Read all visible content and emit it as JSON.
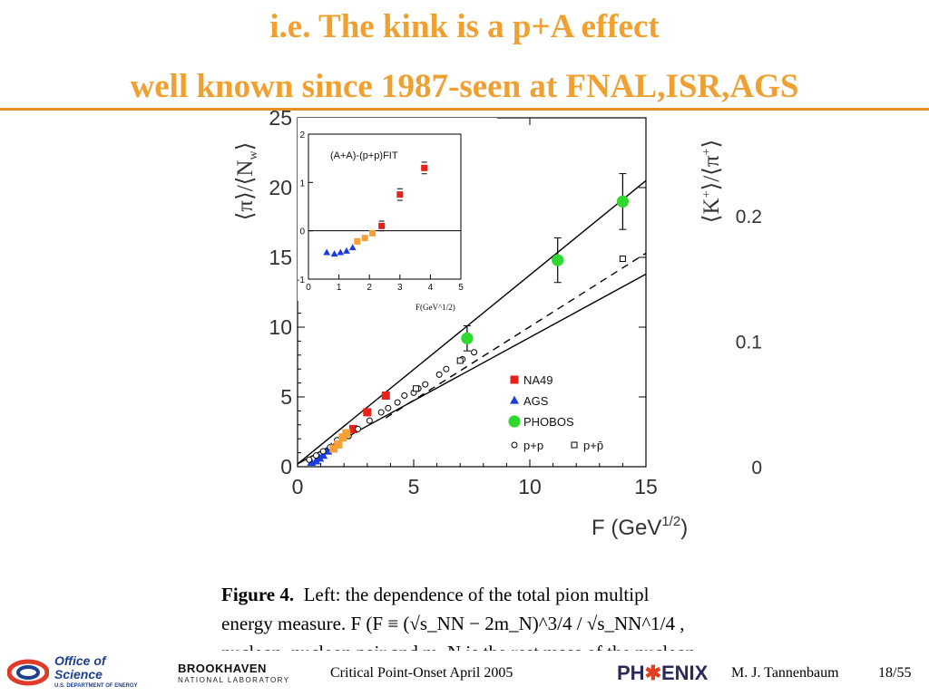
{
  "slide": {
    "title_line1": "i.e. The kink is a p+A effect",
    "title_line2": "well known since 1987-seen at FNAL,ISR,AGS",
    "title_color": "#F0A030"
  },
  "caption": {
    "label": "Figure 4.",
    "line1": "Left: the dependence of the total pion multipl",
    "line2": "energy measure.  F (F ≡ (√s_NN − 2m_N)^3/4 / √s_NN^1/4 ,",
    "line3": "nucleon–nucleon pair and m_N is the rest mass of the nucleon"
  },
  "footer": {
    "doe_line1": "Office of",
    "doe_line2": "Science",
    "doe_line3": "U.S. DEPARTMENT OF ENERGY",
    "bnl_name": "BROOKHAVEN",
    "bnl_sub": "NATIONAL LABORATORY",
    "center_text": "Critical Point-Onset April 2005",
    "phenix_a": "PH",
    "phenix_b": "✱",
    "phenix_c": "ENIX",
    "author": "M. J. Tannenbaum",
    "page": "18/55"
  },
  "chart_data": [
    {
      "type": "scatter",
      "xlabel": "F (GeV^1/2)",
      "ylabel": "⟨π⟩/⟨N_w⟩",
      "y2label": "⟨K+⟩/⟨π+⟩",
      "xlim": [
        0,
        15
      ],
      "ylim": [
        0,
        25
      ],
      "x_ticks": [
        0,
        5,
        10,
        15
      ],
      "y_ticks": [
        0,
        5,
        10,
        15,
        20,
        25
      ],
      "y2_ticks": [
        {
          "label": "0",
          "y_equiv": 0
        },
        {
          "label": "0.1",
          "y_equiv": 9
        },
        {
          "label": "0.2",
          "y_equiv": 18
        }
      ],
      "series": [
        {
          "name": "NA49",
          "marker": "square",
          "color": "#E8201A",
          "points": [
            [
              2.4,
              2.7
            ],
            [
              3.0,
              3.9
            ],
            [
              3.8,
              5.1
            ]
          ]
        },
        {
          "name": "AGS",
          "marker": "triangle",
          "color": "#1A3CE0",
          "points": [
            [
              0.6,
              0.3
            ],
            [
              0.8,
              0.4
            ],
            [
              0.95,
              0.6
            ],
            [
              1.1,
              0.8
            ],
            [
              1.3,
              1.1
            ],
            [
              1.45,
              1.4
            ]
          ]
        },
        {
          "name": "PHOBOS",
          "marker": "circle",
          "color": "#2ED82E",
          "points": [
            [
              7.3,
              9.2
            ],
            [
              11.2,
              14.8
            ],
            [
              14.0,
              19.0
            ]
          ],
          "errors": [
            0.9,
            1.6,
            2.0
          ]
        },
        {
          "name": "p+p",
          "marker": "open-circle",
          "color": "#000000",
          "points": [
            [
              0.5,
              0.5
            ],
            [
              0.8,
              0.8
            ],
            [
              1.1,
              1.1
            ],
            [
              1.4,
              1.4
            ],
            [
              1.7,
              1.9
            ],
            [
              2.2,
              2.2
            ],
            [
              2.6,
              2.7
            ],
            [
              3.1,
              3.3
            ],
            [
              3.6,
              3.9
            ],
            [
              3.9,
              4.2
            ],
            [
              4.3,
              4.6
            ],
            [
              4.6,
              5.1
            ],
            [
              5.0,
              5.3
            ],
            [
              5.2,
              5.6
            ],
            [
              5.5,
              5.9
            ],
            [
              6.1,
              6.6
            ],
            [
              6.4,
              7.0
            ],
            [
              7.1,
              7.7
            ],
            [
              7.6,
              8.2
            ]
          ]
        },
        {
          "name": "p+p̄",
          "marker": "open-square",
          "color": "#000000",
          "points": [
            [
              5.1,
              5.6
            ],
            [
              7.0,
              7.6
            ],
            [
              14.0,
              14.9
            ]
          ]
        },
        {
          "name": "orange",
          "marker": "square",
          "color": "#F7A035",
          "points": [
            [
              1.55,
              1.3
            ],
            [
              1.75,
              1.6
            ],
            [
              1.95,
              2.1
            ],
            [
              2.1,
              2.4
            ]
          ]
        }
      ],
      "fit_lines": [
        {
          "style": "solid",
          "points": [
            [
              0,
              0.2
            ],
            [
              15,
              20.5
            ]
          ]
        },
        {
          "style": "solid",
          "points": [
            [
              0,
              0.2
            ],
            [
              15,
              13.8
            ]
          ]
        },
        {
          "style": "dashed",
          "points": [
            [
              3.8,
              3.5
            ],
            [
              15,
              15.3
            ]
          ]
        }
      ],
      "legend_position": "lower-right"
    },
    {
      "type": "scatter",
      "title": "(A+A)-(p+p)FIT",
      "xlabel": "F(GeV^1/2)",
      "xlim": [
        0,
        5
      ],
      "ylim": [
        -1,
        2
      ],
      "x_ticks": [
        0,
        1,
        2,
        3,
        4,
        5
      ],
      "y_ticks": [
        -1,
        0,
        1,
        2
      ],
      "series": [
        {
          "name": "NA49",
          "marker": "square",
          "color": "#E8201A",
          "points": [
            [
              2.4,
              0.1
            ],
            [
              3.0,
              0.75
            ],
            [
              3.8,
              1.3
            ]
          ],
          "errors": [
            0.1,
            0.12,
            0.12
          ]
        },
        {
          "name": "AGS",
          "marker": "triangle",
          "color": "#1A3CE0",
          "points": [
            [
              0.6,
              -0.45
            ],
            [
              0.85,
              -0.48
            ],
            [
              1.05,
              -0.45
            ],
            [
              1.25,
              -0.42
            ],
            [
              1.45,
              -0.35
            ]
          ]
        },
        {
          "name": "orange",
          "marker": "square",
          "color": "#F7A035",
          "points": [
            [
              1.6,
              -0.22
            ],
            [
              1.85,
              -0.15
            ],
            [
              2.1,
              -0.05
            ]
          ]
        }
      ],
      "zero_line": true
    }
  ]
}
